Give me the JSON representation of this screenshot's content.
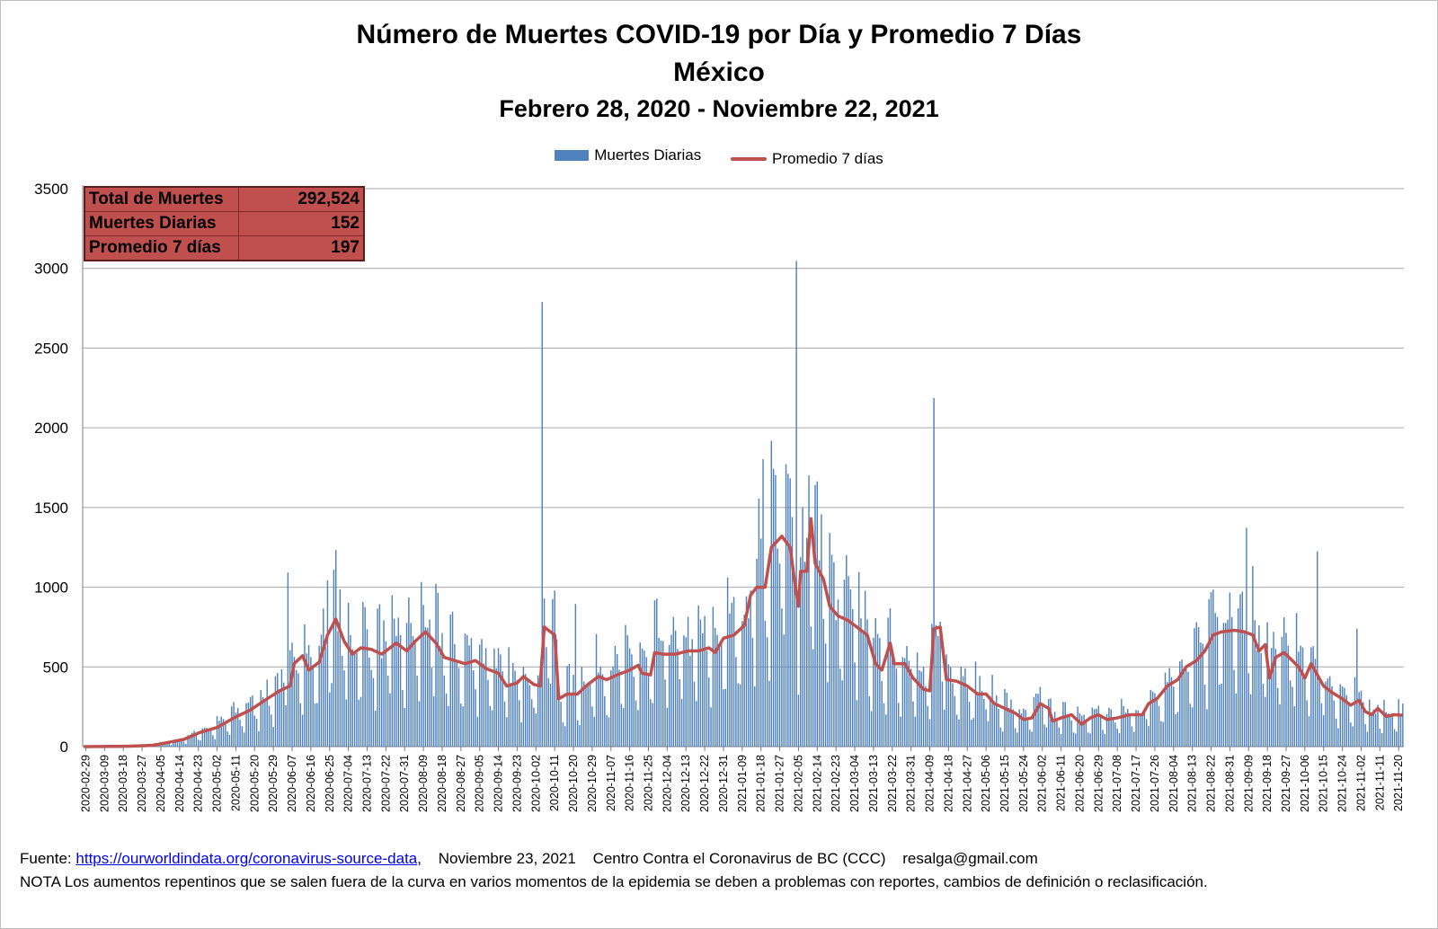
{
  "chart_data": {
    "type": "bar",
    "title": "Número de Muertes COVID-19 por Día y Promedio 7 Días",
    "subtitle": "México",
    "date_range": "Febrero 28, 2020 - Noviembre 22, 2021",
    "xlabel": "",
    "ylabel": "",
    "ylim": [
      0,
      3500
    ],
    "yticks": [
      "0",
      "500",
      "1000",
      "1500",
      "2000",
      "2500",
      "3000",
      "3500"
    ],
    "grid": "horizontal",
    "legend_position": "top",
    "series": [
      {
        "name": "Muertes Diarias",
        "type": "bar",
        "color": "#4f81bd"
      },
      {
        "name": "Promedio 7 días",
        "type": "line",
        "color": "#c0504d"
      }
    ],
    "x_tick_labels": [
      "2020-02-29",
      "2020-03-09",
      "2020-03-18",
      "2020-03-27",
      "2020-04-05",
      "2020-04-14",
      "2020-04-23",
      "2020-05-02",
      "2020-05-11",
      "2020-05-20",
      "2020-05-29",
      "2020-06-07",
      "2020-06-16",
      "2020-06-25",
      "2020-07-04",
      "2020-07-13",
      "2020-07-22",
      "2020-07-31",
      "2020-08-09",
      "2020-08-18",
      "2020-08-27",
      "2020-09-05",
      "2020-09-14",
      "2020-09-23",
      "2020-10-02",
      "2020-10-11",
      "2020-10-20",
      "2020-10-29",
      "2020-11-07",
      "2020-11-16",
      "2020-11-25",
      "2020-12-04",
      "2020-12-13",
      "2020-12-22",
      "2020-12-31",
      "2021-01-09",
      "2021-01-18",
      "2021-01-27",
      "2021-02-05",
      "2021-02-14",
      "2021-02-23",
      "2021-03-04",
      "2021-03-13",
      "2021-03-22",
      "2021-03-31",
      "2021-04-09",
      "2021-04-18",
      "2021-04-27",
      "2021-05-06",
      "2021-05-15",
      "2021-05-24",
      "2021-06-02",
      "2021-06-11",
      "2021-06-20",
      "2021-06-29",
      "2021-07-08",
      "2021-07-17",
      "2021-07-26",
      "2021-08-04",
      "2021-08-13",
      "2021-08-22",
      "2021-08-31",
      "2021-09-09",
      "2021-09-18",
      "2021-09-27",
      "2021-10-06",
      "2021-10-15",
      "2021-10-24",
      "2021-11-02",
      "2021-11-11",
      "2021-11-20"
    ],
    "x_start": "2020-02-28",
    "x_end": "2021-11-22",
    "avg_points": [
      [
        "2020-02-28",
        0
      ],
      [
        "2020-03-20",
        2
      ],
      [
        "2020-04-01",
        8
      ],
      [
        "2020-04-08",
        25
      ],
      [
        "2020-04-16",
        45
      ],
      [
        "2020-04-24",
        90
      ],
      [
        "2020-05-02",
        120
      ],
      [
        "2020-05-10",
        180
      ],
      [
        "2020-05-18",
        230
      ],
      [
        "2020-05-26",
        300
      ],
      [
        "2020-06-01",
        350
      ],
      [
        "2020-06-06",
        380
      ],
      [
        "2020-06-08",
        520
      ],
      [
        "2020-06-12",
        570
      ],
      [
        "2020-06-15",
        480
      ],
      [
        "2020-06-20",
        530
      ],
      [
        "2020-06-24",
        700
      ],
      [
        "2020-06-28",
        800
      ],
      [
        "2020-07-02",
        660
      ],
      [
        "2020-07-06",
        580
      ],
      [
        "2020-07-10",
        620
      ],
      [
        "2020-07-15",
        610
      ],
      [
        "2020-07-20",
        580
      ],
      [
        "2020-07-27",
        650
      ],
      [
        "2020-08-01",
        600
      ],
      [
        "2020-08-05",
        660
      ],
      [
        "2020-08-10",
        720
      ],
      [
        "2020-08-15",
        650
      ],
      [
        "2020-08-19",
        560
      ],
      [
        "2020-08-24",
        540
      ],
      [
        "2020-08-29",
        520
      ],
      [
        "2020-09-03",
        540
      ],
      [
        "2020-09-08",
        490
      ],
      [
        "2020-09-14",
        460
      ],
      [
        "2020-09-18",
        380
      ],
      [
        "2020-09-23",
        400
      ],
      [
        "2020-09-26",
        440
      ],
      [
        "2020-10-01",
        390
      ],
      [
        "2020-10-04",
        380
      ],
      [
        "2020-10-06",
        750
      ],
      [
        "2020-10-09",
        720
      ],
      [
        "2020-10-11",
        700
      ],
      [
        "2020-10-13",
        300
      ],
      [
        "2020-10-17",
        330
      ],
      [
        "2020-10-22",
        330
      ],
      [
        "2020-10-26",
        380
      ],
      [
        "2020-11-01",
        440
      ],
      [
        "2020-11-05",
        420
      ],
      [
        "2020-11-10",
        450
      ],
      [
        "2020-11-16",
        480
      ],
      [
        "2020-11-20",
        510
      ],
      [
        "2020-11-22",
        460
      ],
      [
        "2020-11-26",
        450
      ],
      [
        "2020-11-28",
        590
      ],
      [
        "2020-12-02",
        580
      ],
      [
        "2020-12-08",
        580
      ],
      [
        "2020-12-14",
        600
      ],
      [
        "2020-12-19",
        600
      ],
      [
        "2020-12-24",
        620
      ],
      [
        "2020-12-27",
        590
      ],
      [
        "2020-12-31",
        680
      ],
      [
        "2021-01-05",
        700
      ],
      [
        "2021-01-10",
        760
      ],
      [
        "2021-01-13",
        950
      ],
      [
        "2021-01-16",
        1000
      ],
      [
        "2021-01-20",
        1000
      ],
      [
        "2021-01-23",
        1250
      ],
      [
        "2021-01-28",
        1320
      ],
      [
        "2021-02-01",
        1250
      ],
      [
        "2021-02-03",
        1050
      ],
      [
        "2021-02-05",
        880
      ],
      [
        "2021-02-06",
        1100
      ],
      [
        "2021-02-09",
        1100
      ],
      [
        "2021-02-11",
        1430
      ],
      [
        "2021-02-13",
        1150
      ],
      [
        "2021-02-17",
        1050
      ],
      [
        "2021-02-20",
        880
      ],
      [
        "2021-02-24",
        820
      ],
      [
        "2021-03-01",
        790
      ],
      [
        "2021-03-05",
        750
      ],
      [
        "2021-03-10",
        700
      ],
      [
        "2021-03-14",
        520
      ],
      [
        "2021-03-17",
        480
      ],
      [
        "2021-03-21",
        650
      ],
      [
        "2021-03-23",
        520
      ],
      [
        "2021-03-28",
        520
      ],
      [
        "2021-04-01",
        430
      ],
      [
        "2021-04-06",
        360
      ],
      [
        "2021-04-09",
        350
      ],
      [
        "2021-04-11",
        740
      ],
      [
        "2021-04-14",
        750
      ],
      [
        "2021-04-17",
        420
      ],
      [
        "2021-04-22",
        410
      ],
      [
        "2021-04-27",
        380
      ],
      [
        "2021-05-02",
        330
      ],
      [
        "2021-05-06",
        330
      ],
      [
        "2021-05-10",
        270
      ],
      [
        "2021-05-15",
        240
      ],
      [
        "2021-05-20",
        210
      ],
      [
        "2021-05-24",
        170
      ],
      [
        "2021-05-28",
        180
      ],
      [
        "2021-06-01",
        270
      ],
      [
        "2021-06-05",
        240
      ],
      [
        "2021-06-07",
        160
      ],
      [
        "2021-06-11",
        180
      ],
      [
        "2021-06-16",
        200
      ],
      [
        "2021-06-21",
        140
      ],
      [
        "2021-06-25",
        180
      ],
      [
        "2021-06-29",
        200
      ],
      [
        "2021-07-03",
        170
      ],
      [
        "2021-07-08",
        180
      ],
      [
        "2021-07-14",
        200
      ],
      [
        "2021-07-20",
        200
      ],
      [
        "2021-07-23",
        270
      ],
      [
        "2021-07-27",
        300
      ],
      [
        "2021-08-01",
        380
      ],
      [
        "2021-08-06",
        420
      ],
      [
        "2021-08-10",
        500
      ],
      [
        "2021-08-15",
        540
      ],
      [
        "2021-08-19",
        600
      ],
      [
        "2021-08-23",
        700
      ],
      [
        "2021-08-27",
        720
      ],
      [
        "2021-09-02",
        730
      ],
      [
        "2021-09-07",
        720
      ],
      [
        "2021-09-11",
        700
      ],
      [
        "2021-09-14",
        600
      ],
      [
        "2021-09-17",
        640
      ],
      [
        "2021-09-19",
        430
      ],
      [
        "2021-09-22",
        560
      ],
      [
        "2021-09-26",
        590
      ],
      [
        "2021-09-30",
        540
      ],
      [
        "2021-10-03",
        500
      ],
      [
        "2021-10-06",
        430
      ],
      [
        "2021-10-09",
        520
      ],
      [
        "2021-10-12",
        450
      ],
      [
        "2021-10-15",
        380
      ],
      [
        "2021-10-19",
        340
      ],
      [
        "2021-10-24",
        300
      ],
      [
        "2021-10-28",
        260
      ],
      [
        "2021-11-01",
        290
      ],
      [
        "2021-11-04",
        220
      ],
      [
        "2021-11-07",
        200
      ],
      [
        "2021-11-10",
        240
      ],
      [
        "2021-11-14",
        190
      ],
      [
        "2021-11-18",
        200
      ],
      [
        "2021-11-22",
        197
      ]
    ],
    "spikes": [
      [
        "2020-06-05",
        1092
      ],
      [
        "2020-06-24",
        1044
      ],
      [
        "2020-10-05",
        2789
      ],
      [
        "2020-10-21",
        895
      ],
      [
        "2021-01-19",
        1803
      ],
      [
        "2021-01-24",
        1743
      ],
      [
        "2021-02-04",
        3047
      ],
      [
        "2021-02-10",
        1701
      ],
      [
        "2021-04-11",
        2187
      ],
      [
        "2021-09-08",
        1373
      ],
      [
        "2021-10-12",
        1225
      ],
      [
        "2021-10-31",
        740
      ]
    ]
  },
  "stats_table": [
    {
      "label": "Total de Muertes",
      "value": "292,524"
    },
    {
      "label": "Muertes Diarias",
      "value": "152"
    },
    {
      "label": "Promedio 7 días",
      "value": "197"
    }
  ],
  "footer": {
    "source_label": "Fuente:",
    "source_link": "https://ourworldindata.org/coronavirus-source-data",
    "date": "Noviembre 23, 2021",
    "org": "Centro Contra el Coronavirus de BC (CCC)",
    "email": "resalga@gmail.com",
    "note": "NOTA Los aumentos repentinos que se salen fuera de la curva en varios momentos de la epidemia se deben a problemas con reportes, cambios de definición o reclasificación."
  },
  "colors": {
    "bar": "#4f81bd",
    "line": "#c0504d",
    "table_bg": "#c0504d",
    "grid": "#a6a6a6"
  }
}
